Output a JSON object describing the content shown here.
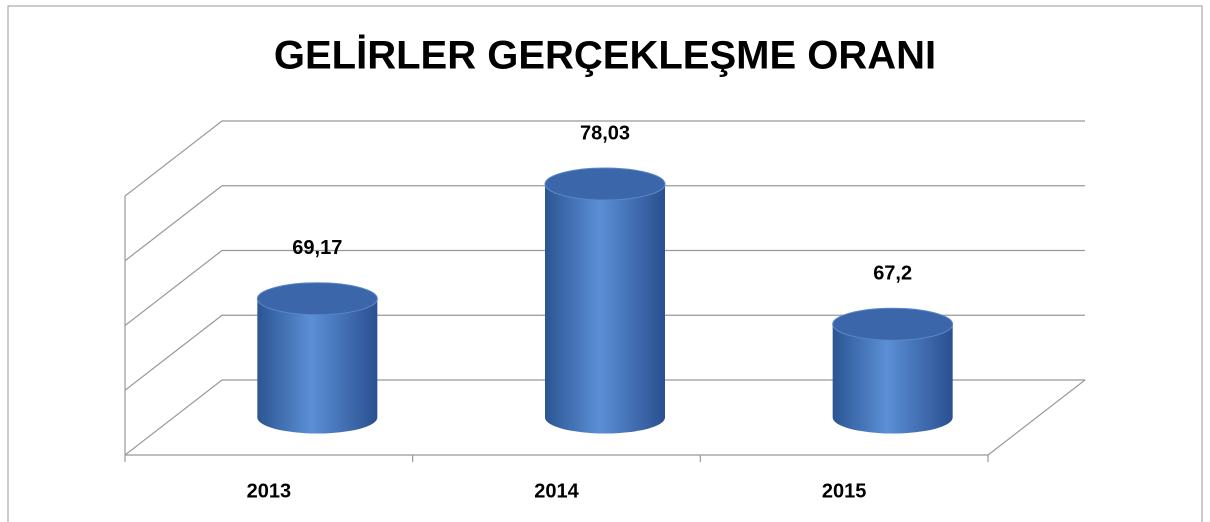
{
  "chart_data": {
    "type": "bar",
    "title": "GELİRLER GERÇEKLEŞME ORANI",
    "categories": [
      "2013",
      "2014",
      "2015"
    ],
    "values": [
      69.17,
      78.03,
      67.2
    ],
    "value_labels": [
      "69,17",
      "78,03",
      "67,2"
    ],
    "color": "#4a7cc4",
    "ylim": [
      60,
      80
    ],
    "yticks": [
      60,
      65,
      70,
      75,
      80
    ],
    "grid": true
  }
}
